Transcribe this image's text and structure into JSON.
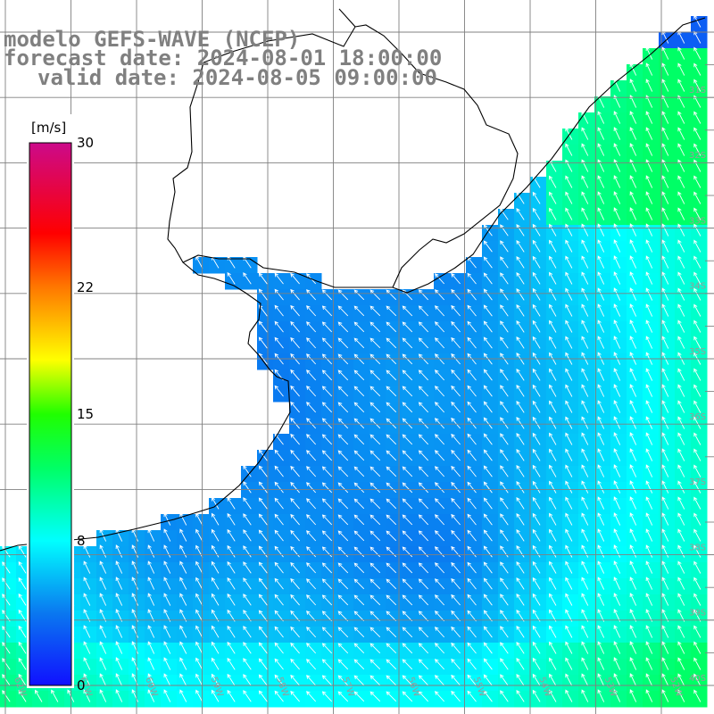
{
  "map": {
    "title_line1": "modelo GEFS-WAVE (NCEP)",
    "title_line2": "forecast date: 2024-08-01 18:00:00",
    "title_line3": "valid date: 2024-08-05 09:00:00",
    "extent": {
      "lon_min": -62,
      "lon_max": -51,
      "lat_min": -41,
      "lat_max": -30.5
    },
    "colors": {
      "land": "#ffffff",
      "grid": "#808080",
      "coast": "#000000",
      "arrows": "#ffffff"
    }
  },
  "colorbar": {
    "unit": "[m/s]",
    "min": 0,
    "max": 30,
    "tick_labels": [
      "30",
      "22",
      "15",
      "8",
      "0"
    ],
    "tick_values": [
      30,
      22,
      15,
      8,
      0
    ],
    "stops": [
      {
        "v": 0,
        "color": "#1010ff"
      },
      {
        "v": 4,
        "color": "#0a78f0"
      },
      {
        "v": 8,
        "color": "#00ffff"
      },
      {
        "v": 12,
        "color": "#00ff66"
      },
      {
        "v": 15,
        "color": "#20ff00"
      },
      {
        "v": 18,
        "color": "#ffff00"
      },
      {
        "v": 22,
        "color": "#ff7800"
      },
      {
        "v": 25,
        "color": "#ff0000"
      },
      {
        "v": 30,
        "color": "#cc0a8a"
      }
    ]
  },
  "lat_labels": [
    "31S",
    "32S",
    "33S",
    "34S",
    "35S",
    "36S",
    "37S",
    "38S",
    "39S",
    "40S",
    "41S"
  ],
  "lon_labels": [
    "62W",
    "61W",
    "60W",
    "59W",
    "58W",
    "57W",
    "56W",
    "55W",
    "54W",
    "53W",
    "52W"
  ]
}
